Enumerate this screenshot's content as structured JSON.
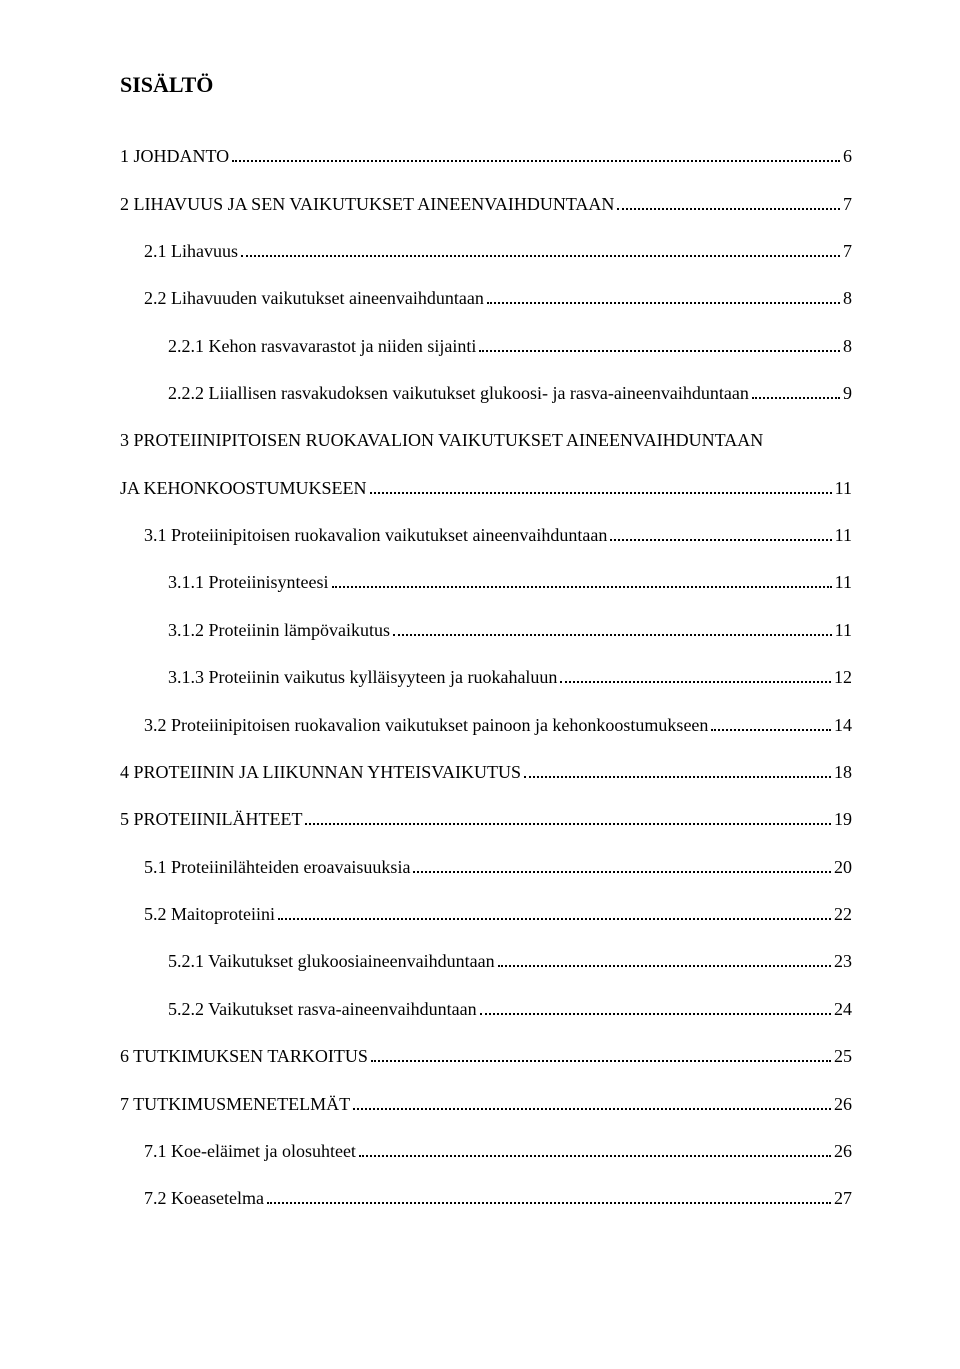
{
  "heading": "SISÄLTÖ",
  "toc": [
    {
      "level": 0,
      "label": "1 JOHDANTO",
      "page": "6"
    },
    {
      "level": 0,
      "label": "2 LIHAVUUS JA SEN VAIKUTUKSET AINEENVAIHDUNTAAN",
      "page": "7"
    },
    {
      "level": 1,
      "label": "2.1 Lihavuus",
      "page": "7"
    },
    {
      "level": 1,
      "label": "2.2 Lihavuuden vaikutukset aineenvaihduntaan",
      "page": "8"
    },
    {
      "level": 2,
      "label": "2.2.1 Kehon rasvavarastot ja niiden sijainti",
      "page": "8"
    },
    {
      "level": 2,
      "label": "2.2.2 Liiallisen rasvakudoksen vaikutukset glukoosi- ja rasva-aineenvaihduntaan",
      "page": "9"
    },
    {
      "level": 0,
      "label": "3 PROTEIINIPITOISEN RUOKAVALION VAIKUTUKSET AINEENVAIHDUNTAAN",
      "label2": "JA KEHONKOOSTUMUKSEEN",
      "page": "11",
      "multiline": true
    },
    {
      "level": 1,
      "label": "3.1 Proteiinipitoisen ruokavalion vaikutukset aineenvaihduntaan",
      "page": "11"
    },
    {
      "level": 2,
      "label": "3.1.1 Proteiinisynteesi",
      "page": "11"
    },
    {
      "level": 2,
      "label": "3.1.2 Proteiinin lämpövaikutus",
      "page": "11"
    },
    {
      "level": 2,
      "label": "3.1.3 Proteiinin vaikutus kylläisyyteen ja ruokahaluun",
      "page": "12"
    },
    {
      "level": 1,
      "label": "3.2 Proteiinipitoisen ruokavalion vaikutukset painoon ja kehonkoostumukseen",
      "page": "14"
    },
    {
      "level": 0,
      "label": "4 PROTEIININ JA LIIKUNNAN YHTEISVAIKUTUS",
      "page": "18"
    },
    {
      "level": 0,
      "label": "5 PROTEIINILÄHTEET",
      "page": "19"
    },
    {
      "level": 1,
      "label": "5.1 Proteiinilähteiden eroavaisuuksia",
      "page": "20"
    },
    {
      "level": 1,
      "label": "5.2 Maitoproteiini",
      "page": "22"
    },
    {
      "level": 2,
      "label": "5.2.1 Vaikutukset glukoosiaineenvaihduntaan",
      "page": "23"
    },
    {
      "level": 2,
      "label": "5.2.2 Vaikutukset rasva-aineenvaihduntaan",
      "page": "24"
    },
    {
      "level": 0,
      "label": "6 TUTKIMUKSEN TARKOITUS",
      "page": "25"
    },
    {
      "level": 0,
      "label": "7 TUTKIMUSMENETELMÄT",
      "page": "26"
    },
    {
      "level": 1,
      "label": "7.1 Koe-eläimet ja olosuhteet",
      "page": "26"
    },
    {
      "level": 1,
      "label": "7.2 Koeasetelma",
      "page": "27"
    }
  ]
}
